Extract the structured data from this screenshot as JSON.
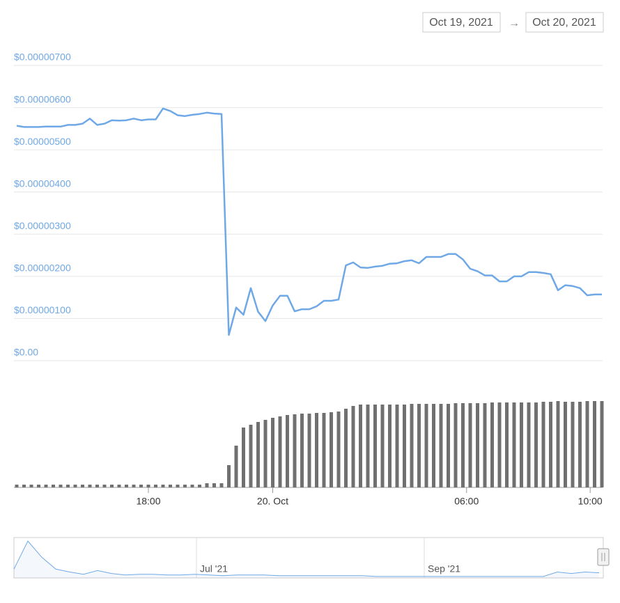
{
  "range": {
    "from": "Oct 19, 2021",
    "separator": "→",
    "to": "Oct 20, 2021"
  },
  "chart_data": [
    {
      "type": "line",
      "color": "#6fa8e6",
      "xlim": [
        0,
        80
      ],
      "ylim": [
        0,
        7e-06
      ],
      "yticks": [
        {
          "value": 0,
          "label": "$0.00"
        },
        {
          "value": 1e-06,
          "label": "$0.00000100"
        },
        {
          "value": 2e-06,
          "label": "$0.00000200"
        },
        {
          "value": 3e-06,
          "label": "$0.00000300"
        },
        {
          "value": 4e-06,
          "label": "$0.00000400"
        },
        {
          "value": 5e-06,
          "label": "$0.00000500"
        },
        {
          "value": 6e-06,
          "label": "$0.00000600"
        },
        {
          "value": 7e-06,
          "label": "$0.00000700"
        }
      ],
      "grid": true,
      "values": [
        5.57e-06,
        5.54e-06,
        5.54e-06,
        5.54e-06,
        5.55e-06,
        5.55e-06,
        5.55e-06,
        5.59e-06,
        5.59e-06,
        5.62e-06,
        5.74e-06,
        5.59e-06,
        5.62e-06,
        5.7e-06,
        5.69e-06,
        5.7e-06,
        5.74e-06,
        5.7e-06,
        5.72e-06,
        5.72e-06,
        5.98e-06,
        5.92e-06,
        5.82e-06,
        5.8e-06,
        5.83e-06,
        5.85e-06,
        5.88e-06,
        5.86e-06,
        5.85e-06,
        6.1e-07,
        1.26e-06,
        1.09e-06,
        1.72e-06,
        1.16e-06,
        9.4e-07,
        1.31e-06,
        1.54e-06,
        1.54e-06,
        1.17e-06,
        1.22e-06,
        1.22e-06,
        1.29e-06,
        1.42e-06,
        1.42e-06,
        1.45e-06,
        2.26e-06,
        2.33e-06,
        2.21e-06,
        2.2e-06,
        2.23e-06,
        2.25e-06,
        2.3e-06,
        2.31e-06,
        2.36e-06,
        2.38e-06,
        2.31e-06,
        2.46e-06,
        2.46e-06,
        2.46e-06,
        2.53e-06,
        2.53e-06,
        2.4e-06,
        2.18e-06,
        2.12e-06,
        2.02e-06,
        2.02e-06,
        1.88e-06,
        1.88e-06,
        2e-06,
        2e-06,
        2.1e-06,
        2.1e-06,
        2.08e-06,
        2.05e-06,
        1.67e-06,
        1.79e-06,
        1.77e-06,
        1.72e-06,
        1.55e-06,
        1.57e-06,
        1.57e-06
      ]
    },
    {
      "type": "bar",
      "color": "#707070",
      "xlim": [
        0,
        80
      ],
      "xticks": [
        {
          "value": 18,
          "label": "18:00"
        },
        {
          "value": 35,
          "label": "20. Oct"
        },
        {
          "value": 61.5,
          "label": "06:00"
        },
        {
          "value": 78.4,
          "label": "10:00"
        }
      ],
      "values": [
        4,
        4,
        4,
        4,
        4,
        4,
        4,
        4,
        4,
        4,
        4,
        4,
        4,
        4,
        4,
        4,
        4,
        4,
        4,
        4,
        4,
        4,
        4,
        4,
        4,
        4,
        6,
        6,
        6,
        32,
        60,
        86,
        90,
        94,
        97,
        100,
        102,
        104,
        105,
        106,
        106,
        107,
        107,
        108,
        109,
        113,
        117,
        119,
        119,
        119,
        119,
        119,
        119,
        119,
        120,
        120,
        120,
        120,
        120,
        120,
        121,
        121,
        121,
        121,
        121,
        122,
        122,
        122,
        122,
        122,
        122,
        122,
        123,
        123,
        124,
        123,
        123,
        123,
        124,
        124,
        124
      ]
    },
    {
      "type": "area",
      "color": "#6fa8e6",
      "xlim": [
        0,
        42
      ],
      "xticks": [
        {
          "value": 13.1,
          "label": "Jul '21"
        },
        {
          "value": 29.45,
          "label": "Sep '21"
        }
      ],
      "values": [
        12,
        50,
        28,
        12,
        8,
        5,
        10,
        6,
        4,
        5,
        5,
        4,
        4,
        5,
        4,
        3,
        4,
        4,
        4,
        3,
        3,
        3,
        3,
        3,
        3,
        3,
        2,
        2,
        2,
        2,
        2,
        2,
        2,
        2,
        2,
        2,
        2,
        2,
        2,
        8,
        6,
        8,
        7
      ]
    }
  ]
}
